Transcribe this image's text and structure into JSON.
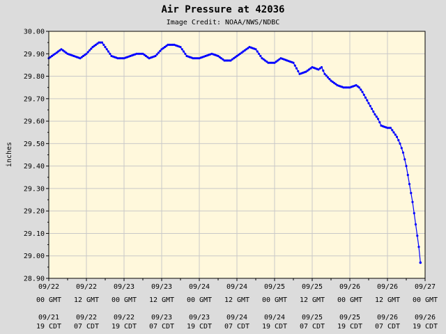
{
  "chart_data": {
    "type": "line",
    "title": "Air Pressure at 42036",
    "subtitle": "Image Credit: NOAA/NWS/NDBC",
    "ylabel": "inches",
    "xlabel": "",
    "ylim": [
      28.9,
      30.0
    ],
    "xlim_hours": [
      0,
      120
    ],
    "yticks": [
      "28.90",
      "29.00",
      "29.10",
      "29.20",
      "29.30",
      "29.40",
      "29.50",
      "29.60",
      "29.70",
      "29.80",
      "29.90",
      "30.00"
    ],
    "xticks_gmt": [
      [
        "09/22",
        "00 GMT"
      ],
      [
        "09/22",
        "12 GMT"
      ],
      [
        "09/23",
        "00 GMT"
      ],
      [
        "09/23",
        "12 GMT"
      ],
      [
        "09/24",
        "00 GMT"
      ],
      [
        "09/24",
        "12 GMT"
      ],
      [
        "09/25",
        "00 GMT"
      ],
      [
        "09/25",
        "12 GMT"
      ],
      [
        "09/26",
        "00 GMT"
      ],
      [
        "09/26",
        "12 GMT"
      ],
      [
        "09/27",
        "00 GMT"
      ]
    ],
    "xticks_cdt": [
      [
        "09/21",
        "19 CDT"
      ],
      [
        "09/22",
        "07 CDT"
      ],
      [
        "09/22",
        "19 CDT"
      ],
      [
        "09/23",
        "07 CDT"
      ],
      [
        "09/23",
        "19 CDT"
      ],
      [
        "09/24",
        "07 CDT"
      ],
      [
        "09/24",
        "19 CDT"
      ],
      [
        "09/25",
        "07 CDT"
      ],
      [
        "09/25",
        "19 CDT"
      ],
      [
        "09/26",
        "07 CDT"
      ],
      [
        "09/26",
        "19 CDT"
      ]
    ],
    "grid": true,
    "series_color": "#0000ff",
    "plot_bg": "#fff8dc",
    "series": [
      {
        "points": [
          [
            0,
            29.88
          ],
          [
            2,
            29.9
          ],
          [
            4,
            29.92
          ],
          [
            6,
            29.9
          ],
          [
            8,
            29.89
          ],
          [
            10,
            29.88
          ],
          [
            12,
            29.9
          ],
          [
            14,
            29.93
          ],
          [
            16,
            29.95
          ],
          [
            17,
            29.95
          ],
          [
            18,
            29.93
          ],
          [
            20,
            29.89
          ],
          [
            22,
            29.88
          ],
          [
            24,
            29.88
          ],
          [
            26,
            29.89
          ],
          [
            28,
            29.9
          ],
          [
            30,
            29.9
          ],
          [
            32,
            29.88
          ],
          [
            34,
            29.89
          ],
          [
            36,
            29.92
          ],
          [
            38,
            29.94
          ],
          [
            40,
            29.94
          ],
          [
            42,
            29.93
          ],
          [
            44,
            29.89
          ],
          [
            46,
            29.88
          ],
          [
            48,
            29.88
          ],
          [
            50,
            29.89
          ],
          [
            52,
            29.9
          ],
          [
            54,
            29.89
          ],
          [
            56,
            29.87
          ],
          [
            58,
            29.87
          ],
          [
            60,
            29.89
          ],
          [
            62,
            29.91
          ],
          [
            64,
            29.93
          ],
          [
            66,
            29.92
          ],
          [
            68,
            29.88
          ],
          [
            70,
            29.86
          ],
          [
            72,
            29.86
          ],
          [
            74,
            29.88
          ],
          [
            76,
            29.87
          ],
          [
            78,
            29.86
          ],
          [
            80,
            29.81
          ],
          [
            82,
            29.82
          ],
          [
            84,
            29.84
          ],
          [
            86,
            29.83
          ],
          [
            87,
            29.84
          ],
          [
            88,
            29.81
          ],
          [
            90,
            29.78
          ],
          [
            92,
            29.76
          ],
          [
            94,
            29.75
          ],
          [
            96,
            29.75
          ],
          [
            98,
            29.76
          ],
          [
            99,
            29.75
          ],
          [
            100,
            29.73
          ],
          [
            102,
            29.68
          ],
          [
            104,
            29.63
          ],
          [
            105,
            29.61
          ],
          [
            106,
            29.58
          ],
          [
            108,
            29.57
          ],
          [
            109,
            29.57
          ],
          [
            110,
            29.55
          ],
          [
            111,
            29.53
          ],
          [
            112,
            29.5
          ],
          [
            113,
            29.46
          ],
          [
            114,
            29.4
          ],
          [
            115,
            29.32
          ],
          [
            116,
            29.24
          ],
          [
            117,
            29.14
          ],
          [
            118,
            29.04
          ],
          [
            118.5,
            28.97
          ]
        ]
      }
    ]
  }
}
